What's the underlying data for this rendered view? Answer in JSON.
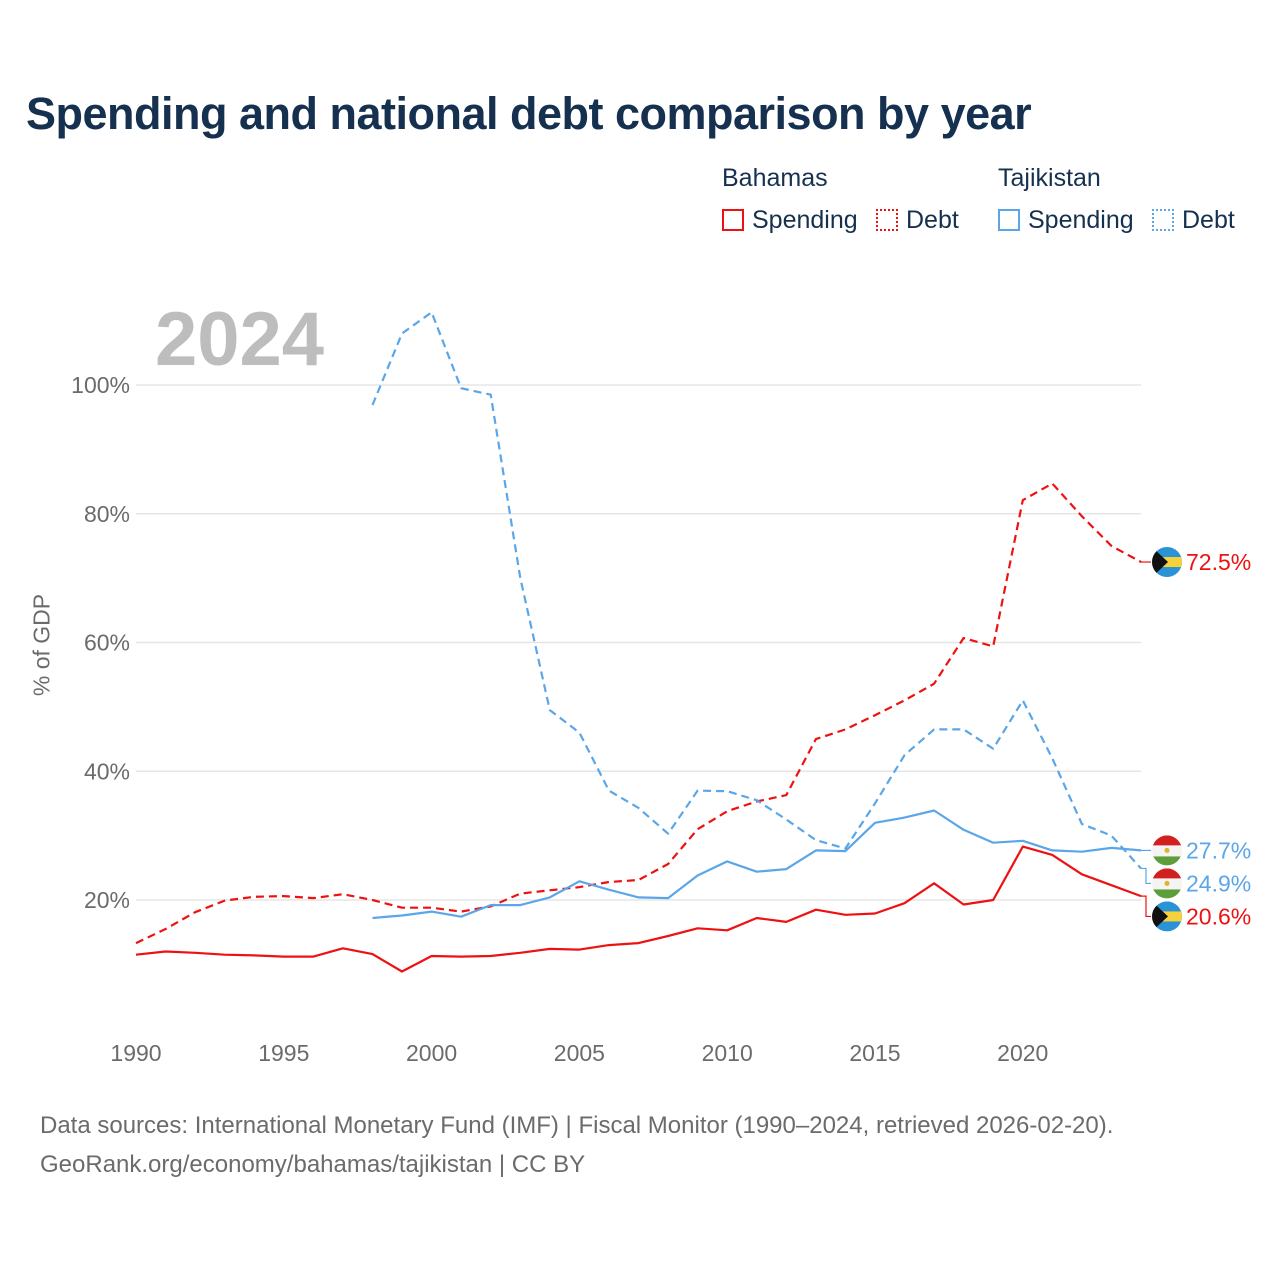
{
  "title": "Spending and national debt comparison by year",
  "year_display": "2024",
  "legend": {
    "groups": [
      {
        "country": "Bahamas",
        "color": "#ee1111",
        "items": [
          {
            "label": "Spending",
            "style": "solid"
          },
          {
            "label": "Debt",
            "style": "dotted"
          }
        ]
      },
      {
        "country": "Tajikistan",
        "color": "#5ba6e8",
        "items": [
          {
            "label": "Spending",
            "style": "solid"
          },
          {
            "label": "Debt",
            "style": "dotted"
          }
        ]
      }
    ]
  },
  "source": {
    "line1": "Data sources: International Monetary Fund (IMF) | Fiscal Monitor (1990–2024, retrieved 2026-02-20).",
    "line2": "GeoRank.org/economy/bahamas/tajikistan | CC BY"
  },
  "chart_data": {
    "type": "line",
    "title": "Spending and national debt comparison by year",
    "xlabel": "",
    "ylabel": "% of GDP",
    "xlim": [
      1990,
      2024
    ],
    "ylim": [
      5,
      113
    ],
    "x_ticks": [
      1990,
      1995,
      2000,
      2005,
      2010,
      2015,
      2020
    ],
    "x_tick_labels": [
      "1990",
      "1995",
      "2000",
      "2005",
      "2010",
      "2015",
      "2020"
    ],
    "y_ticks": [
      20,
      40,
      60,
      80,
      100
    ],
    "y_tick_labels": [
      "20%",
      "40%",
      "60%",
      "80%",
      "100%"
    ],
    "grid": true,
    "series": [
      {
        "name": "Bahamas Spending",
        "country": "Bahamas",
        "metric": "Spending",
        "color": "#ee1111",
        "dash": "solid",
        "x": [
          1990,
          1991,
          1992,
          1993,
          1994,
          1995,
          1996,
          1997,
          1998,
          1999,
          2000,
          2001,
          2002,
          2003,
          2004,
          2005,
          2006,
          2007,
          2008,
          2009,
          2010,
          2011,
          2012,
          2013,
          2014,
          2015,
          2016,
          2017,
          2018,
          2019,
          2020,
          2021,
          2022,
          2023,
          2024
        ],
        "values": [
          11.5,
          12.0,
          11.8,
          11.5,
          11.4,
          11.2,
          11.2,
          12.5,
          11.6,
          8.9,
          11.3,
          11.2,
          11.3,
          11.8,
          12.4,
          12.3,
          13.0,
          13.3,
          14.4,
          15.6,
          15.3,
          17.2,
          16.6,
          18.5,
          17.7,
          17.9,
          19.5,
          22.6,
          19.3,
          20.0,
          28.3,
          27.0,
          24.0,
          22.3,
          20.6
        ],
        "end_label": "20.6%"
      },
      {
        "name": "Bahamas Debt",
        "country": "Bahamas",
        "metric": "Debt",
        "color": "#ee1111",
        "dash": "dashed",
        "x": [
          1990,
          1991,
          1992,
          1993,
          1994,
          1995,
          1996,
          1997,
          1998,
          1999,
          2000,
          2001,
          2002,
          2003,
          2004,
          2005,
          2006,
          2007,
          2008,
          2009,
          2010,
          2011,
          2012,
          2013,
          2014,
          2015,
          2016,
          2017,
          2018,
          2019,
          2020,
          2021,
          2022,
          2023,
          2024
        ],
        "values": [
          13.3,
          15.5,
          18.1,
          19.9,
          20.5,
          20.6,
          20.3,
          20.9,
          20.0,
          18.8,
          18.8,
          18.2,
          19.0,
          21.0,
          21.5,
          22.0,
          22.8,
          23.1,
          25.6,
          31.0,
          33.8,
          35.3,
          36.3,
          45.0,
          46.5,
          48.7,
          51.0,
          53.6,
          60.7,
          59.4,
          82.1,
          84.7,
          79.6,
          75.0,
          72.5
        ],
        "end_label": "72.5%"
      },
      {
        "name": "Tajikistan Spending",
        "country": "Tajikistan",
        "metric": "Spending",
        "color": "#5ba6e8",
        "dash": "solid",
        "x": [
          1998,
          1999,
          2000,
          2001,
          2002,
          2003,
          2004,
          2005,
          2006,
          2007,
          2008,
          2009,
          2010,
          2011,
          2012,
          2013,
          2014,
          2015,
          2016,
          2017,
          2018,
          2019,
          2020,
          2021,
          2022,
          2023,
          2024
        ],
        "values": [
          17.2,
          17.6,
          18.2,
          17.4,
          19.2,
          19.2,
          20.4,
          22.9,
          21.6,
          20.4,
          20.3,
          23.8,
          26.0,
          24.4,
          24.8,
          27.7,
          27.6,
          32.0,
          32.8,
          33.9,
          30.9,
          28.9,
          29.2,
          27.7,
          27.5,
          28.1,
          27.7
        ],
        "end_label": "27.7%"
      },
      {
        "name": "Tajikistan Debt",
        "country": "Tajikistan",
        "metric": "Debt",
        "color": "#5ba6e8",
        "dash": "dashed",
        "x": [
          1998,
          1999,
          2000,
          2001,
          2002,
          2003,
          2004,
          2005,
          2006,
          2007,
          2008,
          2009,
          2010,
          2011,
          2012,
          2013,
          2014,
          2015,
          2016,
          2017,
          2018,
          2019,
          2020,
          2021,
          2022,
          2023,
          2024
        ],
        "values": [
          96.9,
          108.0,
          111.3,
          99.5,
          98.5,
          70.0,
          49.5,
          46.0,
          37.0,
          34.3,
          30.3,
          37.0,
          36.9,
          35.5,
          32.5,
          29.3,
          28.0,
          35.0,
          42.5,
          46.5,
          46.5,
          43.5,
          51.0,
          42.0,
          31.8,
          30.0,
          24.9
        ],
        "end_label": "24.9%"
      }
    ]
  }
}
